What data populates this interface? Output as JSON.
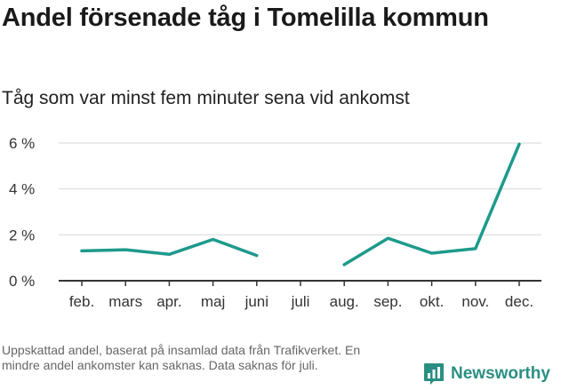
{
  "title": "Andel försenade tåg i Tomelilla kommun",
  "subtitle": "Tåg som var minst fem minuter sena vid ankomst",
  "footnote": "Uppskattad andel, baserat på insamlad data från Trafikverket. En mindre andel ankomster kan saknas. Data saknas för juli.",
  "brand": {
    "name": "Newsworthy",
    "icon": "bar-chart-logo-icon"
  },
  "colors": {
    "line": "#1e9a8c",
    "grid": "#dddddd",
    "axis": "#333333"
  },
  "chart_data": {
    "type": "line",
    "categories": [
      "feb.",
      "mars",
      "apr.",
      "maj",
      "juni",
      "juli",
      "aug.",
      "sep.",
      "okt.",
      "nov.",
      "dec."
    ],
    "series": [
      {
        "values": [
          1.3,
          1.35,
          1.15,
          1.8,
          1.1,
          null,
          0.7,
          1.85,
          1.2,
          1.4,
          5.95
        ]
      }
    ],
    "y_ticks": [
      {
        "value": 0,
        "label": "0 %"
      },
      {
        "value": 2,
        "label": "2 %"
      },
      {
        "value": 4,
        "label": "4 %"
      },
      {
        "value": 6,
        "label": "6 %"
      }
    ],
    "ylim": [
      0,
      6
    ],
    "grid": true
  }
}
